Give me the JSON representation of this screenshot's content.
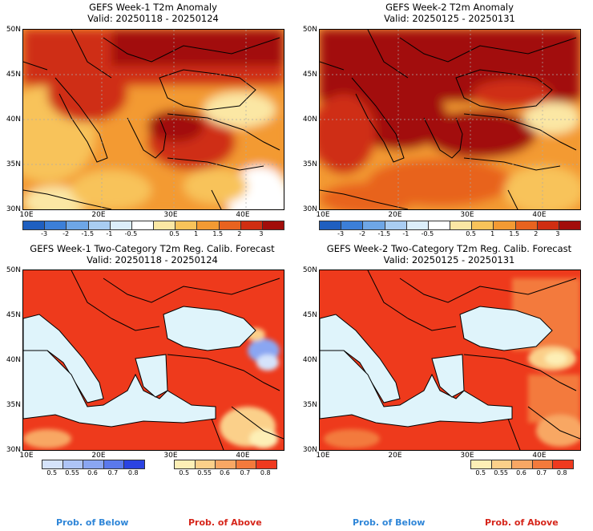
{
  "panels": [
    {
      "title": "GEFS Week-1 T2m Anomaly",
      "valid": "Valid: 20250118 - 20250124"
    },
    {
      "title": "GEFS Week-2 T2m Anomaly",
      "valid": "Valid: 20250125 - 20250131"
    },
    {
      "title": "GEFS Week-1 Two-Category T2m Reg. Calib. Forecast",
      "valid": "Valid: 20250118 - 20250124"
    },
    {
      "title": "GEFS Week-2 Two-Category T2m Reg. Calib. Forecast",
      "valid": "Valid: 20250125 - 20250131"
    }
  ],
  "lat_labels": [
    "50N",
    "45N",
    "40N",
    "35N",
    "30N"
  ],
  "lon_labels": [
    "10E",
    "20E",
    "30E",
    "40E"
  ],
  "anomaly_ticks": [
    "-3",
    "-2",
    "-1.5",
    "-1",
    "-0.5",
    "0.5",
    "1",
    "1.5",
    "2",
    "3"
  ],
  "anomaly_colors": [
    "#1f5fc0",
    "#3c7fd8",
    "#6ea6e6",
    "#a9cdf2",
    "#dceefa",
    "#ffffff",
    "#fbe7a4",
    "#f8c35a",
    "#f39a33",
    "#e8631f",
    "#cf2e12",
    "#a20d0a"
  ],
  "below_ticks": [
    "0.5",
    "0.55",
    "0.6",
    "0.7",
    "0.8"
  ],
  "below_colors": [
    "#d5e3fb",
    "#aec4f6",
    "#8aa6f2",
    "#5b79ec",
    "#2b43e2"
  ],
  "above_ticks": [
    "0.5",
    "0.55",
    "0.6",
    "0.7",
    "0.8"
  ],
  "above_colors": [
    "#fdefb6",
    "#fbd08a",
    "#f8a764",
    "#f37a3c",
    "#ef3a1f"
  ],
  "legend": {
    "below": "Prob. of Below",
    "above": "Prob. of Above"
  },
  "colors": {
    "below_text": "#2f86d8",
    "above_text": "#d6261b",
    "sea": "#dff4fb",
    "land_above": "#ee3a1c"
  }
}
